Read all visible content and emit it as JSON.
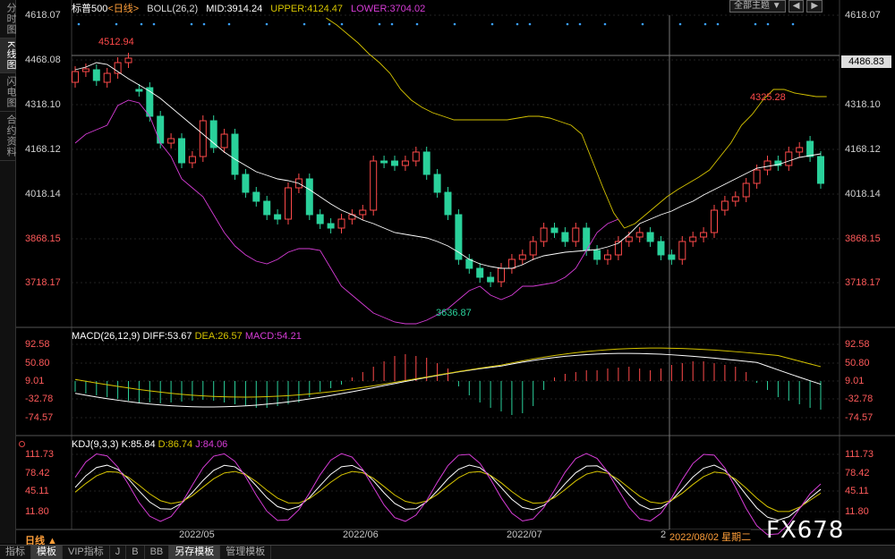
{
  "vtabs": [
    "分时图",
    "K线图",
    "闪电图",
    "合约资料"
  ],
  "header": {
    "name": "标普500",
    "period": "<日线>",
    "boll": "BOLL(26,2)",
    "mid": "MID:3914.24",
    "upper": "UPPER:4124.47",
    "lower": "LOWER:3704.02"
  },
  "topright": {
    "theme": "全部主题",
    "arrow": "▼",
    "b1": "◀",
    "b2": "▶"
  },
  "price_axis": [
    "4618.07",
    "4468.08",
    "4318.10",
    "4168.12",
    "4018.14",
    "3868.15",
    "3718.17"
  ],
  "current_price": "4486.83",
  "annotations": {
    "high": "4512.94",
    "low": "3636.87",
    "high2": "4325.28"
  },
  "macd": {
    "title": "MACD(26,12,9)",
    "diff": "DIFF:53.67",
    "dea": "DEA:26.57",
    "macd": "MACD:54.21",
    "axis": [
      "92.58",
      "50.80",
      "9.01",
      "-32.78",
      "-74.57"
    ]
  },
  "kdj": {
    "title": "KDJ(9,3,3)",
    "k": "K:85.84",
    "d": "D:86.74",
    "j": "J:84.06",
    "axis": [
      "111.73",
      "78.42",
      "45.11",
      "11.80"
    ]
  },
  "dates": [
    "2022/05",
    "2022/06",
    "2022/07",
    "2",
    "2022/08/02 星期二"
  ],
  "period_label": "日线 ▲",
  "bottom_tabs": [
    "指标",
    "模板",
    "VIP指标",
    "J",
    "B",
    "BB",
    "另存模板",
    "管理模板"
  ],
  "watermark": "FX678",
  "colors": {
    "up": "#ff4a4a",
    "down": "#2ad19b",
    "mid": "#ffffff",
    "upper": "#d6c400",
    "lower": "#d63cd6",
    "bg": "#000000"
  }
}
